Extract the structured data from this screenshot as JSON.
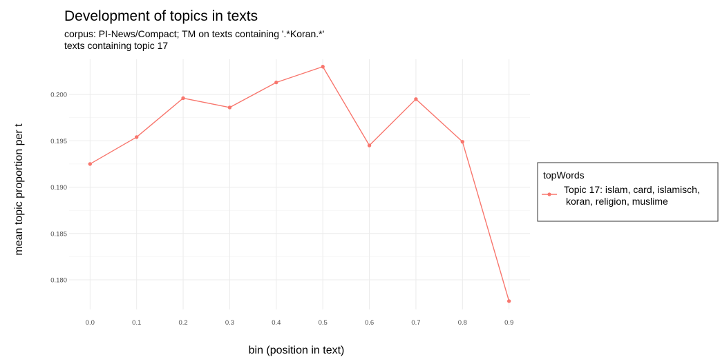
{
  "chart_data": {
    "type": "line",
    "title": "Development of topics in texts",
    "subtitle_lines": [
      "corpus: PI-News/Compact; TM on texts containing '.*Koran.*'",
      "texts containing topic 17"
    ],
    "xlabel": "bin (position in text)",
    "ylabel": "mean topic proportion per t",
    "x": [
      0.0,
      0.1,
      0.2,
      0.3,
      0.4,
      0.5,
      0.6,
      0.7,
      0.8,
      0.9
    ],
    "x_tick_labels": [
      "0.0",
      "0.1",
      "0.2",
      "0.3",
      "0.4",
      "0.5",
      "0.6",
      "0.7",
      "0.8",
      "0.9"
    ],
    "y_ticks": [
      0.18,
      0.185,
      0.19,
      0.195,
      0.2
    ],
    "y_tick_labels": [
      "0.180",
      "0.185",
      "0.190",
      "0.195",
      "0.200"
    ],
    "xlim": [
      -0.045,
      0.945
    ],
    "ylim": [
      0.1768,
      0.2038
    ],
    "grid": true,
    "legend": {
      "title": "topWords",
      "position": "right",
      "entries": [
        {
          "label_lines": [
            "Topic 17: islam, card, islamisch,",
            "koran, religion, muslime"
          ],
          "color": "#F8766D"
        }
      ]
    },
    "series": [
      {
        "name": "Topic 17: islam, card, islamisch, koran, religion, muslime",
        "color": "#F8766D",
        "values": [
          0.1925,
          0.1954,
          0.1996,
          0.1986,
          0.2013,
          0.203,
          0.1945,
          0.1995,
          0.1949,
          0.1777
        ]
      }
    ]
  }
}
